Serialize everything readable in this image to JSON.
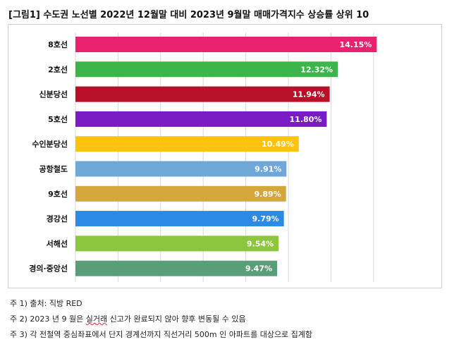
{
  "title": "[그림1] 수도권 노선별 2022년 12월말 대비 2023년 9월말 매매가격지수 상승률 상위 10",
  "chart_data": {
    "type": "bar",
    "orientation": "horizontal",
    "categories": [
      "8호선",
      "2호선",
      "신분당선",
      "5호선",
      "수인분당선",
      "공항철도",
      "9호선",
      "경강선",
      "서해선",
      "경의·중앙선"
    ],
    "values": [
      14.15,
      12.32,
      11.94,
      11.8,
      10.49,
      9.91,
      9.89,
      9.79,
      9.54,
      9.47
    ],
    "value_labels": [
      "14.15%",
      "12.32%",
      "11.94%",
      "11.80%",
      "10.49%",
      "9.91%",
      "9.89%",
      "9.79%",
      "9.54%",
      "9.47%"
    ],
    "colors": [
      "#e8226e",
      "#3cb54a",
      "#b81028",
      "#7a1cc4",
      "#ffc20e",
      "#6fa8d8",
      "#d4a73c",
      "#2a8ae6",
      "#8cc63f",
      "#5a9e78"
    ],
    "xlim": [
      0,
      16
    ],
    "gridlines": [
      0,
      2,
      4,
      6,
      8,
      10,
      12,
      14
    ],
    "grid": true,
    "legend": "none"
  },
  "notes": {
    "note1": "주 1) 출처: 직방 RED",
    "note2_pre": "주 2) 2023 년 9 월은 ",
    "note2_mark": "실거래",
    "note2_post": " 신고가 완료되지 않아 향후 변동될 수 있음",
    "note3": "주 3) 각 전철역 중심좌표에서 단지 경계선까지 직선거리 500m 인 아파트를 대상으로 집계함"
  }
}
